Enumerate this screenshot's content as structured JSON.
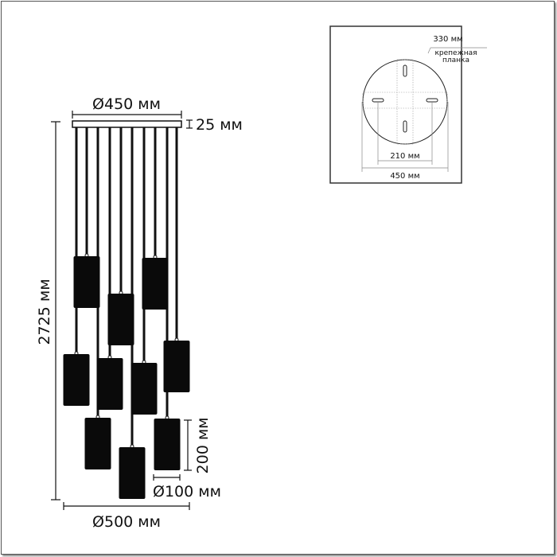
{
  "main_view": {
    "canopy_diameter": "Ø450 мм",
    "canopy_height": "25 мм",
    "total_height": "2725 мм",
    "shade_height": "200 мм",
    "shade_diameter": "Ø100 мм",
    "overall_diameter": "Ø500 мм"
  },
  "mount_detail": {
    "bracket_size": "330 мм",
    "bracket_label_line1": "крепежная",
    "bracket_label_line2": "планка",
    "hole_spacing": "210 мм",
    "plate_diameter": "450 мм"
  },
  "colors": {
    "lines": "#111111",
    "shades": "#0a0a0a"
  }
}
